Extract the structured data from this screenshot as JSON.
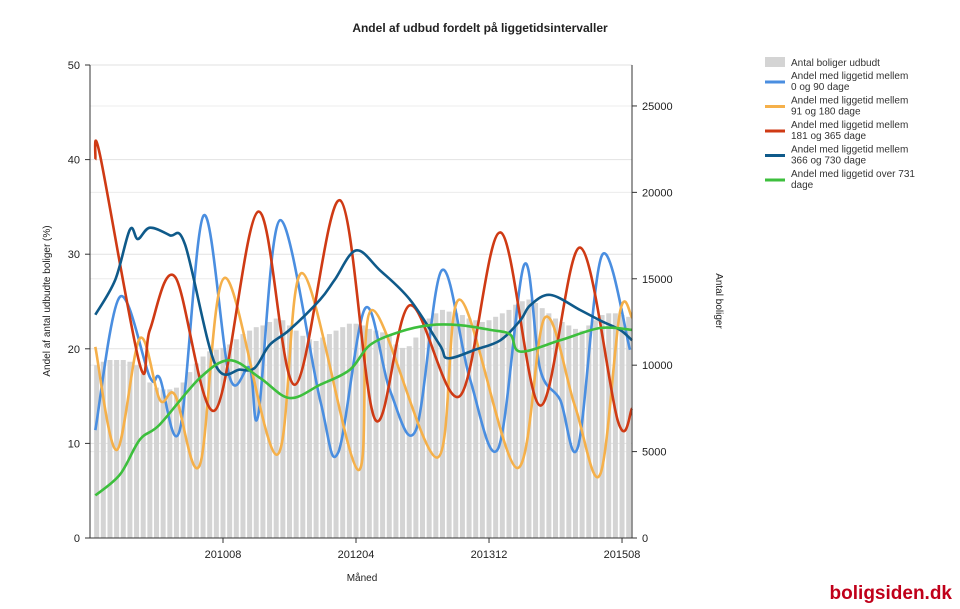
{
  "brand": "boligsiden.dk",
  "chart_data": {
    "type": "line",
    "title": "Andel af udbud fordelt på liggetidsintervaller",
    "xlabel": "Måned",
    "ylabel": "Andel af antal udbudte boliger (%)",
    "y2label": "Antal boliger",
    "x_unit": "months since 200812",
    "xlim": [
      0,
      81.5
    ],
    "ylim": [
      0,
      50
    ],
    "y2lim": [
      0,
      27370
    ],
    "yticks": [
      0,
      10,
      20,
      30,
      40,
      50
    ],
    "y2ticks": [
      0,
      5000,
      10000,
      15000,
      20000,
      25000
    ],
    "xticks": [
      {
        "x": 20,
        "label": "201008"
      },
      {
        "x": 40,
        "label": "201204"
      },
      {
        "x": 60,
        "label": "201312"
      },
      {
        "x": 80,
        "label": "201508"
      }
    ],
    "grid": true,
    "legend_position": "right",
    "bars": {
      "name": "Antal boliger udbudt",
      "color": "#d4d4d4",
      "values": [
        10000,
        10200,
        10300,
        10300,
        10300,
        10200,
        10000,
        9500,
        9000,
        8700,
        8600,
        8600,
        8700,
        9000,
        9600,
        10100,
        10500,
        10800,
        10900,
        11000,
        11200,
        11500,
        11800,
        12000,
        12200,
        12300,
        12500,
        12700,
        12600,
        12300,
        12000,
        11700,
        11500,
        11400,
        11600,
        11800,
        12000,
        12200,
        12400,
        12400,
        12300,
        12100,
        12000,
        11900,
        11700,
        11200,
        11000,
        11100,
        11600,
        12300,
        12700,
        13000,
        13200,
        13100,
        13000,
        12900,
        12700,
        12600,
        12500,
        12600,
        12800,
        13000,
        13200,
        13500,
        13700,
        13800,
        13600,
        13300,
        13000,
        12700,
        12500,
        12300,
        12100,
        12000,
        12300,
        12600,
        12900,
        13000,
        13000,
        12900,
        12800
      ]
    },
    "series": [
      {
        "name": "Andel med liggetid mellem 0 og 90 dage",
        "color": "#4a8ee0",
        "points": [
          [
            0.8,
            11.4
          ],
          [
            4.5,
            25.5
          ],
          [
            9,
            17
          ],
          [
            10.5,
            16.9
          ],
          [
            13.5,
            11.4
          ],
          [
            17.1,
            34.1
          ],
          [
            21,
            17
          ],
          [
            24,
            18
          ],
          [
            25.3,
            13
          ],
          [
            28.6,
            33.6
          ],
          [
            34.6,
            14.6
          ],
          [
            37.3,
            9
          ],
          [
            41.4,
            24.3
          ],
          [
            45.1,
            15.6
          ],
          [
            49,
            11.4
          ],
          [
            52.9,
            28.3
          ],
          [
            57.1,
            16.9
          ],
          [
            61.4,
            9.5
          ],
          [
            65.3,
            28.9
          ],
          [
            67.7,
            17.8
          ],
          [
            70.7,
            14.6
          ],
          [
            73.4,
            9.7
          ],
          [
            77,
            29.9
          ],
          [
            81.2,
            19.9
          ]
        ]
      },
      {
        "name": "Andel med liggetid mellem 91 og 180 dage",
        "color": "#f5b04a",
        "points": [
          [
            0.8,
            20.2
          ],
          [
            4,
            9.3
          ],
          [
            7.5,
            21.1
          ],
          [
            10.5,
            14.6
          ],
          [
            12.8,
            15.1
          ],
          [
            16.5,
            7.7
          ],
          [
            20.3,
            27.5
          ],
          [
            28.1,
            8.8
          ],
          [
            31.9,
            28
          ],
          [
            40.3,
            7.2
          ],
          [
            42.4,
            24.1
          ],
          [
            52.2,
            8.5
          ],
          [
            55.6,
            25.2
          ],
          [
            64.2,
            7.4
          ],
          [
            68.4,
            23.3
          ],
          [
            72.9,
            14
          ],
          [
            76.7,
            6.7
          ],
          [
            79.7,
            23.9
          ],
          [
            81.5,
            23.3
          ]
        ]
      },
      {
        "name": "Andel med liggetid mellem 181 og 365 dage",
        "color": "#cf3a14",
        "points": [
          [
            0.8,
            40
          ],
          [
            1.5,
            40.5
          ],
          [
            7.5,
            18.3
          ],
          [
            9,
            22
          ],
          [
            12.8,
            27.6
          ],
          [
            18.8,
            13.5
          ],
          [
            25.3,
            34.5
          ],
          [
            30.8,
            16.2
          ],
          [
            37.6,
            35.7
          ],
          [
            42.9,
            12.5
          ],
          [
            48.1,
            24.6
          ],
          [
            55.6,
            15
          ],
          [
            61.7,
            32.3
          ],
          [
            67.7,
            14
          ],
          [
            73.7,
            30.7
          ],
          [
            79.4,
            12.3
          ],
          [
            81.5,
            13.7
          ]
        ]
      },
      {
        "name": "Andel med liggetid mellem 366 og 730 dage",
        "color": "#0f5a8a",
        "points": [
          [
            0.8,
            23.6
          ],
          [
            3.8,
            27.3
          ],
          [
            6,
            32.6
          ],
          [
            7.2,
            31.6
          ],
          [
            9,
            32.8
          ],
          [
            12,
            32
          ],
          [
            14.3,
            31
          ],
          [
            18.8,
            18.4
          ],
          [
            22.6,
            17.8
          ],
          [
            24.8,
            18
          ],
          [
            27,
            20.4
          ],
          [
            30,
            22
          ],
          [
            34.6,
            25.2
          ],
          [
            36.8,
            27.3
          ],
          [
            40,
            30.4
          ],
          [
            43.6,
            28.3
          ],
          [
            48.1,
            25.2
          ],
          [
            52.6,
            20.4
          ],
          [
            53.8,
            19
          ],
          [
            57.9,
            19.9
          ],
          [
            61.7,
            20.9
          ],
          [
            64.7,
            23
          ],
          [
            66.2,
            24.6
          ],
          [
            69.2,
            25.7
          ],
          [
            73.7,
            24.1
          ],
          [
            76.7,
            23
          ],
          [
            79.7,
            22
          ],
          [
            81.5,
            20.9
          ]
        ]
      },
      {
        "name": "Andel med liggetid over 731 dage",
        "color": "#3dbf3d",
        "points": [
          [
            0.8,
            4.5
          ],
          [
            4.5,
            6.7
          ],
          [
            7.5,
            10.4
          ],
          [
            10.5,
            12
          ],
          [
            16.5,
            16.9
          ],
          [
            21,
            18.8
          ],
          [
            25.6,
            16.9
          ],
          [
            30,
            14.8
          ],
          [
            34.6,
            16.2
          ],
          [
            39.1,
            17.8
          ],
          [
            42.1,
            20.4
          ],
          [
            46.6,
            21.8
          ],
          [
            51.1,
            22.5
          ],
          [
            55.6,
            22.5
          ],
          [
            60.2,
            22
          ],
          [
            63.2,
            21.5
          ],
          [
            64.7,
            19.7
          ],
          [
            70.7,
            20.9
          ],
          [
            76.7,
            22.2
          ],
          [
            81.5,
            22
          ]
        ]
      }
    ],
    "legend": [
      {
        "label": "Antal boliger udbudt",
        "kind": "bar",
        "color": "#d4d4d4"
      },
      {
        "label": [
          "Andel med liggetid mellem",
          "0 og 90 dage"
        ],
        "kind": "line",
        "color": "#4a8ee0"
      },
      {
        "label": [
          "Andel med liggetid mellem",
          "91 og 180 dage"
        ],
        "kind": "line",
        "color": "#f5b04a"
      },
      {
        "label": [
          "Andel med liggetid mellem",
          "181 og 365 dage"
        ],
        "kind": "line",
        "color": "#cf3a14"
      },
      {
        "label": [
          "Andel med liggetid mellem",
          "366 og 730 dage"
        ],
        "kind": "line",
        "color": "#0f5a8a"
      },
      {
        "label": [
          "Andel med liggetid over 731",
          "dage"
        ],
        "kind": "line",
        "color": "#3dbf3d"
      }
    ]
  }
}
